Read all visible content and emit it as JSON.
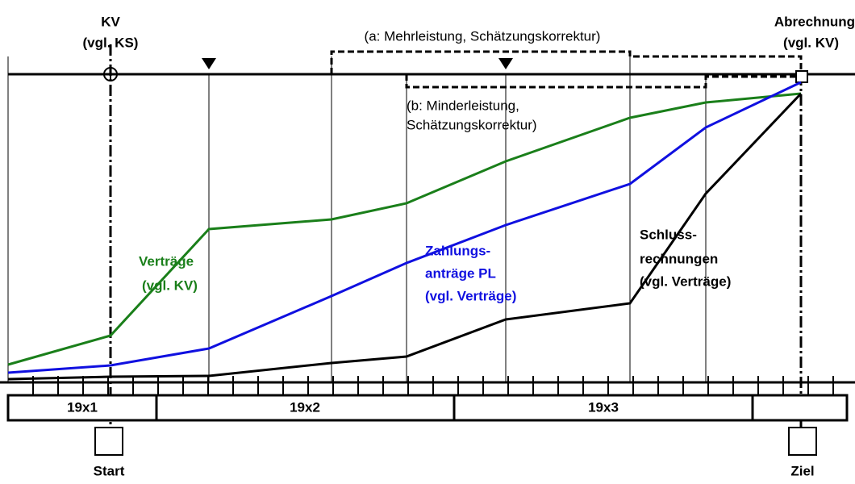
{
  "labels": {
    "kv": "KV",
    "kv_sub": "(vgl. KS)",
    "abrechnung": "Abrechnung",
    "abrechnung_sub": "(vgl. KV)",
    "a": "(a: Mehrleistung, Schätzungskorrektur)",
    "b1": "(b: Minderleistung,",
    "b2": "Schätzungskorrektur)",
    "vertraege1": "Verträge",
    "vertraege2": "(vgl. KV)",
    "zahlung1": "Zahlungs-",
    "zahlung2": "anträge PL",
    "zahlung3": "(vgl. Verträge)",
    "schluss1": "Schluss-",
    "schluss2": "rechnungen",
    "schluss3": "(vgl. Verträge)",
    "years": [
      "19x1",
      "19x2",
      "19x3"
    ],
    "start": "Start",
    "ziel": "Ziel"
  }
}
